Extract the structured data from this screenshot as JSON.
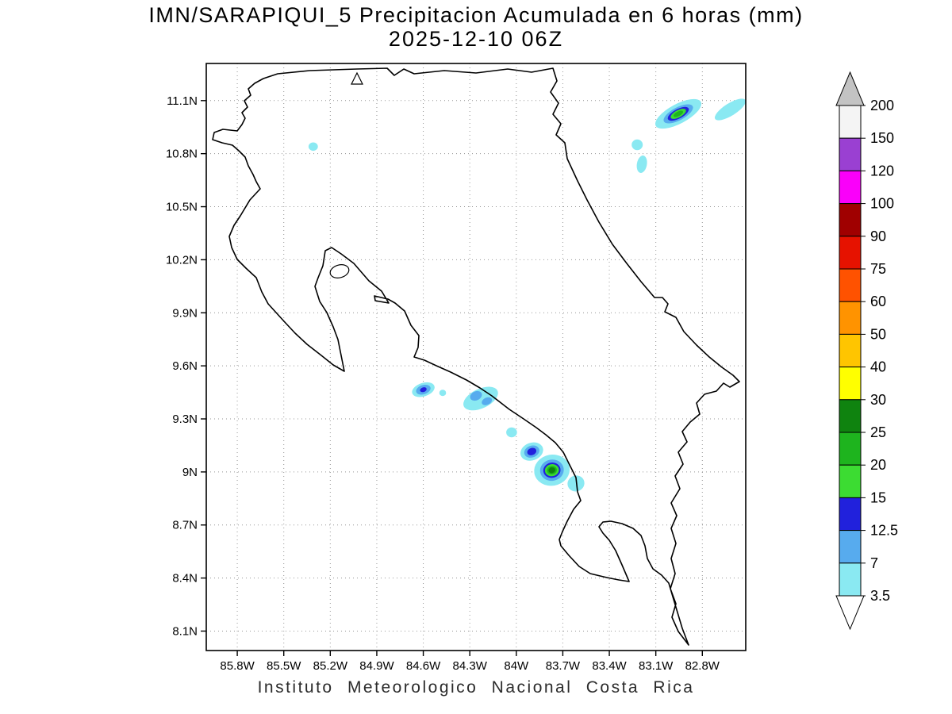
{
  "header": {
    "title_line1": "IMN/SARAPIQUI_5 Precipitacion Acumulada en 6 horas (mm)",
    "title_line2": "2025-12-10 06Z"
  },
  "footer": {
    "caption": "Instituto Meteorologico Nacional Costa Rica"
  },
  "chart_data": {
    "type": "heatmap",
    "title": "IMN/SARAPIQUI_5 Precipitacion Acumulada en 6 horas (mm)",
    "valid_time": "2025-12-10 06Z",
    "units": "mm",
    "grid_style": "dotted",
    "lon_left_w": 86.0,
    "lon_right_w": 82.52,
    "lat_top_n": 11.31,
    "lat_bottom_n": 7.99,
    "x_axis": {
      "ticks": [
        "85.8W",
        "85.5W",
        "85.2W",
        "84.9W",
        "84.6W",
        "84.3W",
        "84W",
        "83.7W",
        "83.4W",
        "83.1W",
        "82.8W"
      ],
      "values_deg_w": [
        85.8,
        85.5,
        85.2,
        84.9,
        84.6,
        84.3,
        84.0,
        83.7,
        83.4,
        83.1,
        82.8
      ]
    },
    "y_axis": {
      "ticks": [
        "11.1N",
        "10.8N",
        "10.5N",
        "10.2N",
        "9.9N",
        "9.6N",
        "9.3N",
        "9N",
        "8.7N",
        "8.4N",
        "8.1N"
      ],
      "values_deg_n": [
        11.1,
        10.8,
        10.5,
        10.2,
        9.9,
        9.6,
        9.3,
        9.0,
        8.7,
        8.4,
        8.1
      ]
    },
    "colorbar": {
      "labels_top_to_bottom": [
        "200",
        "150",
        "120",
        "100",
        "90",
        "75",
        "60",
        "50",
        "40",
        "30",
        "25",
        "20",
        "15",
        "12.5",
        "7",
        "3.5"
      ],
      "segment_colors_top_to_bottom": [
        "#F4F4F4",
        "#9A40D2",
        "#FA00FA",
        "#A00000",
        "#E61200",
        "#FF5200",
        "#FF9300",
        "#FFC500",
        "#FFFF00",
        "#0F830F",
        "#1EB41E",
        "#3CDC32",
        "#2121DC",
        "#57ABEE",
        "#8AE9F2"
      ],
      "arrow_top_color": "#C3C3C3",
      "arrow_bottom_color": "#FFFFFF"
    },
    "cells": [
      {
        "name": "caribbean-ne-cell",
        "lon_w": 82.955,
        "lat_n": 11.025,
        "max_level_mm": 20,
        "rings": [
          {
            "mm": 3.5,
            "rx_deg": 0.165,
            "ry_deg": 0.055,
            "rot": -28
          },
          {
            "mm": 7,
            "rx_deg": 0.105,
            "ry_deg": 0.037,
            "rot": -28
          },
          {
            "mm": 12.5,
            "rx_deg": 0.075,
            "ry_deg": 0.027,
            "rot": -28
          },
          {
            "mm": 15,
            "rx_deg": 0.055,
            "ry_deg": 0.02,
            "rot": -28
          },
          {
            "mm": 20,
            "rx_deg": 0.034,
            "ry_deg": 0.013,
            "rot": -28
          }
        ]
      },
      {
        "name": "caribbean-ne-streak",
        "lon_w": 82.62,
        "lat_n": 11.05,
        "max_level_mm": 3.5,
        "rings": [
          {
            "mm": 3.5,
            "rx_deg": 0.115,
            "ry_deg": 0.035,
            "rot": -32
          }
        ]
      },
      {
        "name": "guanacaste-dot",
        "lon_w": 85.31,
        "lat_n": 10.84,
        "max_level_mm": 3.5,
        "rings": [
          {
            "mm": 3.5,
            "rx_deg": 0.03,
            "ry_deg": 0.024,
            "rot": 0
          }
        ]
      },
      {
        "name": "caribbean-coast-patch-a",
        "lon_w": 83.22,
        "lat_n": 10.85,
        "max_level_mm": 3.5,
        "rings": [
          {
            "mm": 3.5,
            "rx_deg": 0.036,
            "ry_deg": 0.03,
            "rot": 0
          }
        ]
      },
      {
        "name": "caribbean-coast-patch-b",
        "lon_w": 83.19,
        "lat_n": 10.74,
        "max_level_mm": 3.5,
        "rings": [
          {
            "mm": 3.5,
            "rx_deg": 0.032,
            "ry_deg": 0.05,
            "rot": 10
          }
        ]
      },
      {
        "name": "pacific-blob-west",
        "lon_w": 84.6,
        "lat_n": 9.465,
        "max_level_mm": 12.5,
        "rings": [
          {
            "mm": 3.5,
            "rx_deg": 0.075,
            "ry_deg": 0.038,
            "rot": -18
          },
          {
            "mm": 7,
            "rx_deg": 0.048,
            "ry_deg": 0.026,
            "rot": -18
          },
          {
            "mm": 12.5,
            "rx_deg": 0.022,
            "ry_deg": 0.013,
            "rot": -18
          }
        ]
      },
      {
        "name": "pacific-dot-small",
        "lon_w": 84.475,
        "lat_n": 9.447,
        "max_level_mm": 3.5,
        "rings": [
          {
            "mm": 3.5,
            "rx_deg": 0.022,
            "ry_deg": 0.018,
            "rot": 0
          }
        ]
      },
      {
        "name": "pacific-cluster-central",
        "lon_w": 84.23,
        "lat_n": 9.415,
        "max_level_mm": 7,
        "rings": [
          {
            "mm": 3.5,
            "rx_deg": 0.12,
            "ry_deg": 0.055,
            "rot": -25
          },
          {
            "mm": 7,
            "lon_w": 84.26,
            "lat_n": 9.43,
            "rx_deg": 0.04,
            "ry_deg": 0.025,
            "rot": -25
          },
          {
            "mm": 7,
            "lon_w": 84.19,
            "lat_n": 9.4,
            "rx_deg": 0.035,
            "ry_deg": 0.02,
            "rot": -25
          }
        ]
      },
      {
        "name": "pacific-dot-mid",
        "lon_w": 84.03,
        "lat_n": 9.224,
        "max_level_mm": 3.5,
        "rings": [
          {
            "mm": 3.5,
            "rx_deg": 0.035,
            "ry_deg": 0.028,
            "rot": 0
          }
        ]
      },
      {
        "name": "pacific-cell-inner",
        "lon_w": 83.9,
        "lat_n": 9.115,
        "max_level_mm": 12.5,
        "rings": [
          {
            "mm": 3.5,
            "rx_deg": 0.075,
            "ry_deg": 0.05,
            "rot": -20
          },
          {
            "mm": 7,
            "rx_deg": 0.05,
            "ry_deg": 0.033,
            "rot": -20
          },
          {
            "mm": 12.5,
            "rx_deg": 0.03,
            "ry_deg": 0.02,
            "rot": -20
          }
        ]
      },
      {
        "name": "pacific-main-cell",
        "lon_w": 83.77,
        "lat_n": 9.01,
        "max_level_mm": 25,
        "rings": [
          {
            "mm": 3.5,
            "rx_deg": 0.115,
            "ry_deg": 0.088,
            "rot": -10
          },
          {
            "mm": 7,
            "rx_deg": 0.077,
            "ry_deg": 0.06,
            "rot": -10
          },
          {
            "mm": 12.5,
            "rx_deg": 0.056,
            "ry_deg": 0.043,
            "rot": -10
          },
          {
            "mm": 15,
            "rx_deg": 0.045,
            "ry_deg": 0.034,
            "rot": -10
          },
          {
            "mm": 20,
            "rx_deg": 0.032,
            "ry_deg": 0.024,
            "rot": -10
          },
          {
            "mm": 25,
            "rx_deg": 0.022,
            "ry_deg": 0.016,
            "rot": -10
          }
        ]
      },
      {
        "name": "pacific-main-tail",
        "lon_w": 83.615,
        "lat_n": 8.935,
        "max_level_mm": 3.5,
        "rings": [
          {
            "mm": 3.5,
            "rx_deg": 0.055,
            "ry_deg": 0.045,
            "rot": -20
          }
        ]
      }
    ]
  }
}
